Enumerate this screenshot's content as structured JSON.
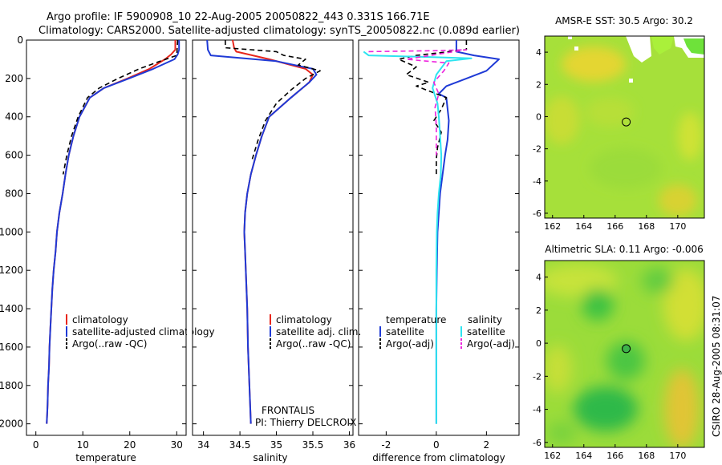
{
  "header": {
    "line1": "Argo profile: IF 5900908_10 22-Aug-2005 20050822_443 0.331S 166.71E",
    "line2": "Climatology: CARS2000. Satellite-adjusted climatology: synTS_20050822.nc (0.089d earlier)"
  },
  "side_label": "CSIRO 28-Aug-2005 08:31:07",
  "colors": {
    "climatology": "#e8261c",
    "satellite": "#1f3ad6",
    "argo": "#000000",
    "sal_sat": "#2ee4f0",
    "sal_argo": "#ee22dd"
  },
  "chart_data": [
    {
      "type": "line",
      "name": "temperature-panel",
      "xlabel": "temperature",
      "ylabel": "",
      "xlim": [
        -2,
        32
      ],
      "ylim": [
        2060,
        0
      ],
      "xticks": [
        0,
        10,
        20,
        30
      ],
      "yticks": [
        0,
        200,
        400,
        600,
        800,
        1000,
        1200,
        1400,
        1600,
        1800,
        2000
      ],
      "legend": [
        "climatology",
        "satellite-adjusted climatology",
        "Argo(..raw -QC)"
      ],
      "series": [
        {
          "name": "climatology",
          "color": "#e8261c",
          "dash": "",
          "width": 2,
          "x": [
            29.7,
            29.7,
            28.8,
            27.5,
            24.2,
            19.5,
            14.5,
            11.5,
            9.3,
            8.0,
            7.0,
            6.3,
            5.7,
            5.0,
            4.5,
            4.2,
            3.8,
            3.5,
            3.3,
            3.1,
            2.9,
            2.8,
            2.6,
            2.5,
            2.4,
            2.3
          ],
          "depth": [
            0,
            50,
            75,
            100,
            150,
            200,
            250,
            300,
            400,
            500,
            600,
            700,
            800,
            900,
            1000,
            1100,
            1200,
            1300,
            1400,
            1500,
            1600,
            1700,
            1800,
            1900,
            1950,
            2000
          ]
        },
        {
          "name": "satellite-adjusted climatology",
          "color": "#1f3ad6",
          "dash": "",
          "width": 2,
          "x": [
            30.5,
            30.5,
            30.2,
            29.5,
            25.0,
            19.8,
            14.5,
            11.5,
            9.3,
            8.0,
            7.0,
            6.3,
            5.7,
            5.0,
            4.5,
            4.2,
            3.8,
            3.5,
            3.3,
            3.1,
            2.9,
            2.8,
            2.6,
            2.5,
            2.4,
            2.3
          ],
          "depth": [
            0,
            50,
            75,
            100,
            150,
            200,
            250,
            300,
            400,
            500,
            600,
            700,
            800,
            900,
            1000,
            1100,
            1200,
            1300,
            1400,
            1500,
            1600,
            1700,
            1800,
            1900,
            1950,
            2000
          ]
        },
        {
          "name": "Argo(..raw -QC)",
          "color": "#000000",
          "dash": "6,4",
          "width": 1.6,
          "x": [
            30.2,
            30.0,
            26.5,
            22.0,
            17.5,
            13.5,
            11.0,
            9.0,
            7.6,
            6.6,
            5.8
          ],
          "depth": [
            0,
            80,
            110,
            150,
            200,
            250,
            300,
            400,
            500,
            600,
            700
          ]
        }
      ]
    },
    {
      "type": "line",
      "name": "salinity-panel",
      "xlabel": "salinity",
      "xlim": [
        33.85,
        36.05
      ],
      "ylim": [
        2060,
        0
      ],
      "xticks": [
        34,
        34.5,
        35,
        35.5,
        36
      ],
      "legend": [
        "climatology",
        "satellite adj. clim.",
        "Argo(..raw -QC)"
      ],
      "annotation": [
        "FRONTALIS",
        "PI: Thierry DELCROIX"
      ],
      "series": [
        {
          "name": "climatology",
          "color": "#e8261c",
          "dash": "",
          "width": 2,
          "x": [
            34.4,
            34.42,
            34.45,
            34.9,
            35.4,
            35.5,
            35.45,
            35.2,
            34.9,
            34.8,
            34.72,
            34.65,
            34.6,
            34.57,
            34.56,
            34.57,
            34.58,
            34.6,
            34.61,
            34.62,
            34.63,
            34.64,
            34.65
          ],
          "depth": [
            0,
            40,
            60,
            100,
            150,
            180,
            220,
            300,
            400,
            500,
            600,
            700,
            800,
            900,
            1000,
            1100,
            1200,
            1400,
            1600,
            1700,
            1800,
            1900,
            2000
          ]
        },
        {
          "name": "satellite adj. clim.",
          "color": "#1f3ad6",
          "dash": "",
          "width": 2,
          "x": [
            34.05,
            34.06,
            34.1,
            35.0,
            35.5,
            35.55,
            35.45,
            35.2,
            34.9,
            34.8,
            34.72,
            34.65,
            34.6,
            34.57,
            34.56,
            34.57,
            34.58,
            34.6,
            34.61,
            34.62,
            34.63,
            34.64,
            34.65
          ],
          "depth": [
            0,
            50,
            80,
            110,
            150,
            180,
            220,
            300,
            400,
            500,
            600,
            700,
            800,
            900,
            1000,
            1100,
            1200,
            1400,
            1600,
            1700,
            1800,
            1900,
            2000
          ]
        },
        {
          "name": "Argo(..raw -QC)",
          "color": "#000000",
          "dash": "6,4",
          "width": 1.6,
          "x": [
            34.3,
            34.3,
            35.0,
            35.1,
            35.4,
            35.3,
            35.6,
            35.4,
            35.2,
            35.0,
            34.85,
            34.75,
            34.67
          ],
          "depth": [
            0,
            40,
            60,
            80,
            100,
            130,
            160,
            200,
            260,
            330,
            420,
            520,
            620
          ]
        }
      ]
    },
    {
      "type": "line",
      "name": "difference-panel",
      "xlabel": "difference from climatology",
      "xlim": [
        -3.1,
        3.3
      ],
      "ylim": [
        2060,
        0
      ],
      "xticks": [
        -2,
        0,
        2
      ],
      "legend_headers": [
        "temperature",
        "salinity"
      ],
      "legend": [
        "satellite",
        "Argo(-adj)",
        "satellite",
        "Argo(-adj)"
      ],
      "series": [
        {
          "name": "temperature satellite",
          "color": "#1f3ad6",
          "dash": "",
          "width": 2,
          "x": [
            0.8,
            0.8,
            1.5,
            2.5,
            2.0,
            1.2,
            0.4,
            0.1,
            0.4,
            0.5,
            0.45,
            0.35,
            0.25,
            0.15,
            0.1,
            0.05,
            0.02,
            0.0,
            0.0,
            0.0,
            0.0,
            0.0
          ],
          "depth": [
            0,
            60,
            80,
            100,
            160,
            200,
            240,
            280,
            300,
            420,
            520,
            600,
            700,
            800,
            900,
            1000,
            1200,
            1400,
            1600,
            1800,
            1900,
            2000
          ]
        },
        {
          "name": "temperature Argo(-adj)",
          "color": "#000000",
          "dash": "6,4",
          "width": 1.6,
          "x": [
            1.2,
            1.2,
            -0.8,
            -1.5,
            -0.8,
            -1.2,
            -0.3,
            -0.8,
            0.4,
            0.2,
            -0.1,
            0.2,
            0.05,
            0.0,
            0.0,
            0.0
          ],
          "depth": [
            0,
            50,
            80,
            100,
            140,
            180,
            220,
            240,
            300,
            360,
            420,
            480,
            560,
            620,
            650,
            700
          ]
        },
        {
          "name": "salinity satellite",
          "color": "#2ee4f0",
          "dash": "",
          "width": 2,
          "x": [
            -2.9,
            -2.7,
            0.1,
            1.4,
            0.4,
            0.0,
            -0.15,
            0.05,
            0.1,
            0.15,
            0.2,
            0.18,
            0.1,
            0.05,
            0.02,
            0.0,
            0.0,
            0.0
          ],
          "depth": [
            60,
            80,
            90,
            95,
            110,
            180,
            250,
            330,
            400,
            500,
            600,
            700,
            800,
            900,
            1000,
            1200,
            1600,
            2000
          ]
        },
        {
          "name": "salinity Argo(-adj)",
          "color": "#ee22dd",
          "dash": "6,4",
          "width": 1.6,
          "x": [
            -2.7,
            0.0,
            1.2,
            -1.2,
            0.5,
            0.3,
            -0.1,
            0.1,
            -0.05,
            0.0,
            0.0
          ],
          "depth": [
            60,
            55,
            50,
            100,
            120,
            160,
            220,
            280,
            350,
            450,
            600
          ]
        }
      ]
    },
    {
      "type": "heatmap",
      "name": "amsr-sst-map",
      "title": "AMSR-E SST: 30.5 Argo: 30.2",
      "xlim": [
        161.5,
        171.7
      ],
      "ylim": [
        -6.3,
        5.0
      ],
      "xticks": [
        162,
        164,
        166,
        168,
        170
      ],
      "yticks": [
        4,
        2,
        0,
        -2,
        -4,
        -6
      ],
      "marker": {
        "lon": 166.71,
        "lat": -0.331
      }
    },
    {
      "type": "heatmap",
      "name": "altimetric-sla-map",
      "title": "Altimetric SLA: 0.11 Argo: -0.006",
      "xlim": [
        161.5,
        171.7
      ],
      "ylim": [
        -6.3,
        5.0
      ],
      "xticks": [
        162,
        164,
        166,
        168,
        170
      ],
      "yticks": [
        4,
        2,
        0,
        -2,
        -4,
        -6
      ],
      "marker": {
        "lon": 166.71,
        "lat": -0.331
      }
    }
  ]
}
